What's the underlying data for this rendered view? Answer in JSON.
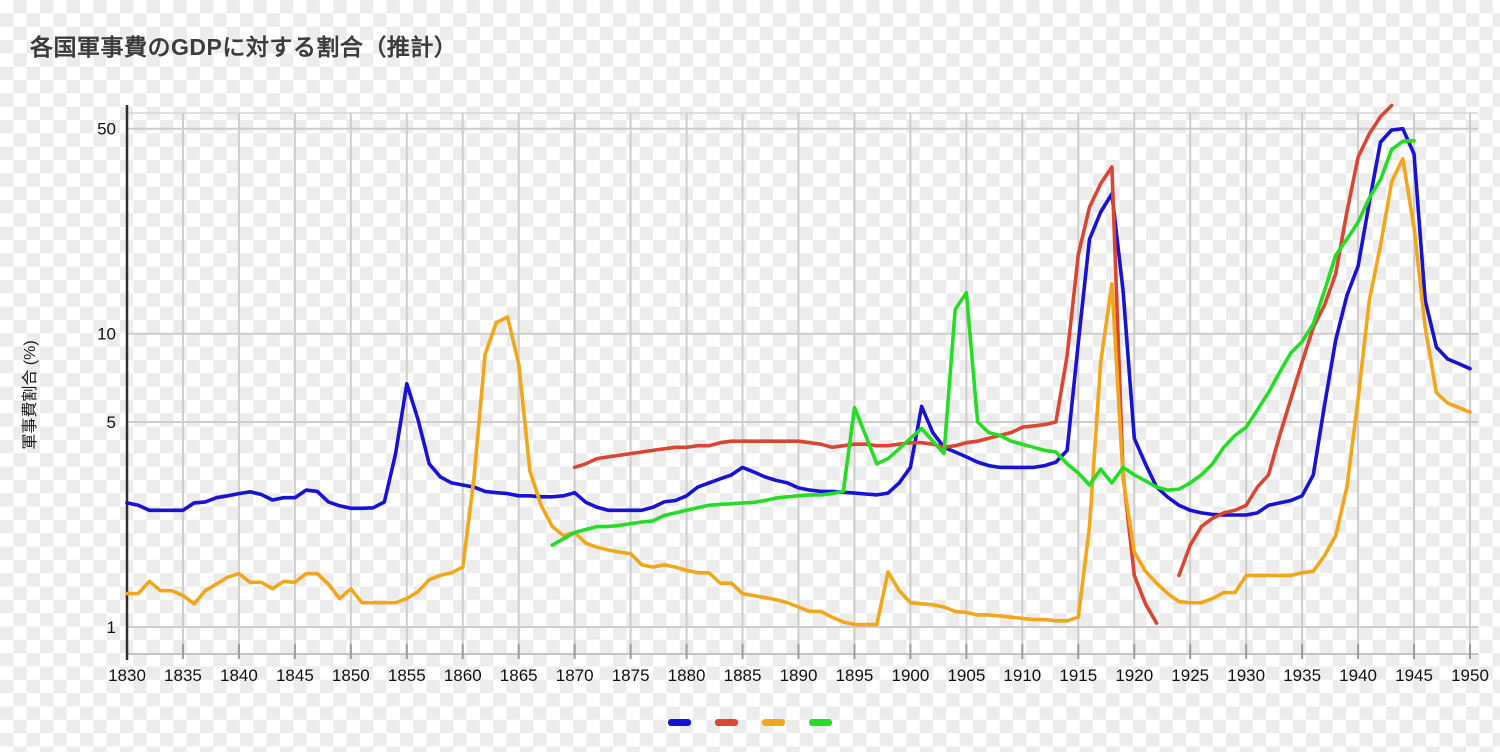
{
  "title": "各国軍事費のGDPに対する割合（推計）",
  "y_axis": {
    "label": "軍事費割合 (%)",
    "tick_labels": [
      "1",
      "5",
      "10",
      "50"
    ]
  },
  "x_axis": {
    "start": 1830,
    "end": 1950,
    "tick_step": 5
  },
  "legend": {
    "swatches": [
      "#1813D4",
      "#DB4632",
      "#F2A71B",
      "#25DD25"
    ]
  },
  "chart_data": {
    "type": "line",
    "title": "各国軍事費のGDPに対する割合（推計）",
    "xlabel": "",
    "ylabel": "軍事費割合 (%)",
    "y_scale": "log",
    "ylim": [
      0.8,
      60.5
    ],
    "xlim": [
      1830,
      1950
    ],
    "x_ticks": [
      1830,
      1835,
      1840,
      1845,
      1850,
      1855,
      1860,
      1865,
      1870,
      1875,
      1880,
      1885,
      1890,
      1895,
      1900,
      1905,
      1910,
      1915,
      1920,
      1925,
      1930,
      1935,
      1940,
      1945,
      1950
    ],
    "y_ticks": [
      1,
      5,
      10,
      50
    ],
    "grid": true,
    "legend_position": "bottom",
    "series": [
      {
        "name": "",
        "color_name": "blue",
        "color": "#1813D4",
        "start_year": 1830,
        "values": [
          2.65,
          2.6,
          2.5,
          2.5,
          2.5,
          2.5,
          2.65,
          2.67,
          2.76,
          2.8,
          2.85,
          2.89,
          2.83,
          2.71,
          2.76,
          2.76,
          2.93,
          2.9,
          2.67,
          2.59,
          2.54,
          2.54,
          2.55,
          2.67,
          3.9,
          6.75,
          5.1,
          3.6,
          3.25,
          3.1,
          3.05,
          3.0,
          2.9,
          2.87,
          2.85,
          2.8,
          2.8,
          2.78,
          2.78,
          2.8,
          2.87,
          2.66,
          2.56,
          2.5,
          2.5,
          2.5,
          2.5,
          2.56,
          2.67,
          2.7,
          2.8,
          3.0,
          3.1,
          3.2,
          3.3,
          3.5,
          3.38,
          3.25,
          3.16,
          3.1,
          2.98,
          2.93,
          2.9,
          2.9,
          2.88,
          2.86,
          2.84,
          2.82,
          2.86,
          3.1,
          3.5,
          5.65,
          4.6,
          4.1,
          3.95,
          3.8,
          3.65,
          3.55,
          3.5,
          3.5,
          3.5,
          3.5,
          3.55,
          3.65,
          4.0,
          9.3,
          21,
          26,
          30,
          14,
          4.4,
          3.6,
          3.0,
          2.77,
          2.6,
          2.5,
          2.45,
          2.42,
          2.41,
          2.41,
          2.41,
          2.45,
          2.6,
          2.65,
          2.7,
          2.8,
          3.3,
          5.7,
          9.5,
          13.5,
          17,
          28,
          45,
          49.5,
          50,
          41,
          13,
          9,
          8.2,
          7.9,
          7.6
        ]
      },
      {
        "name": "",
        "color_name": "red",
        "color": "#DB4632",
        "start_year": 1870,
        "values": [
          3.5,
          3.6,
          3.75,
          3.8,
          3.85,
          3.9,
          3.95,
          4.0,
          4.05,
          4.1,
          4.1,
          4.15,
          4.15,
          4.25,
          4.3,
          4.3,
          4.3,
          4.3,
          4.3,
          4.3,
          4.3,
          4.25,
          4.2,
          4.1,
          4.15,
          4.2,
          4.2,
          4.15,
          4.15,
          4.2,
          4.25,
          4.25,
          4.2,
          4.1,
          4.15,
          4.25,
          4.3,
          4.4,
          4.5,
          4.6,
          4.8,
          4.85,
          4.9,
          5.0,
          8.4,
          18.6,
          27,
          32.5,
          37,
          3.3,
          1.5,
          1.2,
          1.03,
          null,
          1.5,
          1.9,
          2.2,
          2.35,
          2.45,
          2.5,
          2.6,
          3.0,
          3.3,
          4.5,
          6.0,
          8.0,
          10.5,
          12.5,
          16,
          26,
          40,
          48,
          55,
          60
        ]
      },
      {
        "name": "",
        "color_name": "orange",
        "color": "#F2A71B",
        "start_year": 1830,
        "values": [
          1.3,
          1.3,
          1.43,
          1.33,
          1.33,
          1.28,
          1.2,
          1.33,
          1.4,
          1.48,
          1.52,
          1.42,
          1.42,
          1.35,
          1.43,
          1.42,
          1.52,
          1.52,
          1.4,
          1.25,
          1.35,
          1.21,
          1.21,
          1.21,
          1.21,
          1.25,
          1.32,
          1.45,
          1.5,
          1.53,
          1.6,
          3.2,
          8.5,
          10.9,
          11.4,
          7.9,
          3.4,
          2.6,
          2.2,
          2.05,
          2.1,
          1.93,
          1.87,
          1.83,
          1.8,
          1.78,
          1.63,
          1.6,
          1.63,
          1.6,
          1.56,
          1.53,
          1.53,
          1.41,
          1.41,
          1.3,
          1.28,
          1.26,
          1.24,
          1.21,
          1.17,
          1.13,
          1.13,
          1.08,
          1.04,
          1.02,
          1.02,
          1.02,
          1.54,
          1.33,
          1.21,
          1.2,
          1.19,
          1.17,
          1.13,
          1.12,
          1.1,
          1.1,
          1.09,
          1.08,
          1.07,
          1.06,
          1.06,
          1.05,
          1.05,
          1.08,
          2.2,
          8.0,
          14.8,
          3.2,
          1.8,
          1.55,
          1.41,
          1.3,
          1.22,
          1.21,
          1.21,
          1.25,
          1.31,
          1.31,
          1.5,
          1.5,
          1.5,
          1.5,
          1.5,
          1.53,
          1.55,
          1.75,
          2.05,
          3.0,
          6.0,
          13,
          20,
          33,
          39.5,
          23,
          10.5,
          6.3,
          5.8,
          5.6,
          5.4
        ]
      },
      {
        "name": "",
        "color_name": "green",
        "color": "#25DD25",
        "start_year": 1868,
        "values": [
          1.9,
          2.0,
          2.1,
          2.15,
          2.2,
          2.2,
          2.22,
          2.25,
          2.28,
          2.3,
          2.4,
          2.45,
          2.5,
          2.55,
          2.6,
          2.62,
          2.63,
          2.65,
          2.66,
          2.7,
          2.75,
          2.78,
          2.8,
          2.82,
          2.82,
          2.85,
          2.9,
          5.6,
          4.5,
          3.6,
          3.75,
          4.05,
          4.4,
          4.75,
          4.3,
          3.9,
          12.1,
          13.8,
          5.0,
          4.6,
          4.5,
          4.3,
          4.2,
          4.1,
          4.0,
          3.95,
          3.6,
          3.35,
          3.05,
          3.45,
          3.1,
          3.5,
          3.3,
          3.15,
          3.0,
          2.93,
          2.95,
          3.1,
          3.3,
          3.6,
          4.1,
          4.5,
          4.8,
          5.5,
          6.3,
          7.4,
          8.6,
          9.4,
          10.8,
          14,
          18.5,
          21,
          24,
          29,
          33.5,
          42.5,
          45.3,
          45.5
        ]
      }
    ]
  }
}
